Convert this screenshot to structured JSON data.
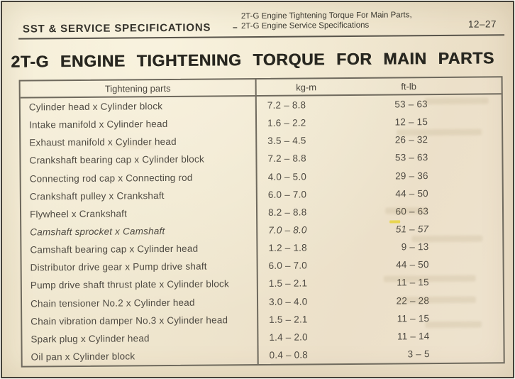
{
  "page_header": {
    "left_title": "SST & SERVICE SPECIFICATIONS",
    "dash": "–",
    "subtitle_line1": "2T-G Engine Tightening Torque For Main Parts,",
    "subtitle_line2": "2T-G Engine Service Specifications",
    "page_number": "12–27"
  },
  "title": "2T-G ENGINE TIGHTENING TORQUE FOR MAIN PARTS",
  "table": {
    "headers": [
      "Tightening parts",
      "kg-m",
      "ft-lb"
    ],
    "rows": [
      {
        "part": "Cylinder head x Cylinder block",
        "kgm": "7.2 – 8.8",
        "ftlb": "53 – 63"
      },
      {
        "part": "Intake manifold x Cylinder head",
        "kgm": "1.6 – 2.2",
        "ftlb": "12 – 15"
      },
      {
        "part": "Exhaust manifold x Cylinder head",
        "kgm": "3.5 – 4.5",
        "ftlb": "26 – 32"
      },
      {
        "part": "Crankshaft bearing cap x Cylinder block",
        "kgm": "7.2 – 8.8",
        "ftlb": "53 – 63"
      },
      {
        "part": "Connecting rod cap x Connecting rod",
        "kgm": "4.0 – 5.0",
        "ftlb": "29 – 36"
      },
      {
        "part": "Crankshaft pulley x Crankshaft",
        "kgm": "6.0 – 7.0",
        "ftlb": "44 – 50"
      },
      {
        "part": "Flywheel x Crankshaft",
        "kgm": "8.2 – 8.8",
        "ftlb": "60 – 63"
      },
      {
        "part": "Camshaft sprocket x Camshaft",
        "kgm": "7.0 – 8.0",
        "ftlb": "51 – 57"
      },
      {
        "part": "Camshaft bearing cap x Cylinder head",
        "kgm": "1.2 – 1.8",
        "ftlb": "9 – 13"
      },
      {
        "part": "Distributor drive gear x Pump drive shaft",
        "kgm": "6.0 – 7.0",
        "ftlb": "44 – 50"
      },
      {
        "part": "Pump drive shaft thrust plate x Cylinder block",
        "kgm": "1.5 – 2.1",
        "ftlb": "11 – 15"
      },
      {
        "part": "Chain tensioner No.2 x Cylinder head",
        "kgm": "3.0 – 4.0",
        "ftlb": "22 – 28"
      },
      {
        "part": "Chain vibration damper No.3 x Cylinder head",
        "kgm": "1.5 – 2.1",
        "ftlb": "11 – 15"
      },
      {
        "part": "Spark plug x Cylinder head",
        "kgm": "1.4 – 2.0",
        "ftlb": "11 – 14"
      },
      {
        "part": "Oil pan x Cylinder block",
        "kgm": "0.4 – 0.8",
        "ftlb": "3 –  5"
      }
    ]
  }
}
